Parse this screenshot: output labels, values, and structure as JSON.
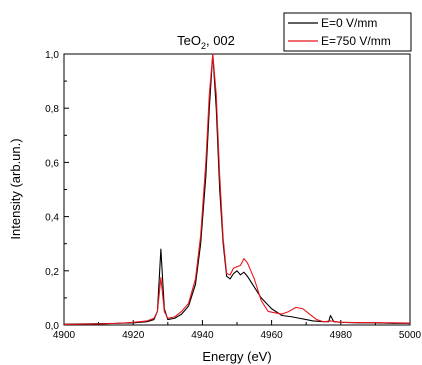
{
  "chart_data": {
    "type": "line",
    "title_main": "TeO",
    "title_sub": "2",
    "title_rest": ", 002",
    "xlabel": "Energy (eV)",
    "ylabel": "Intensity (arb.un.)",
    "xlim": [
      4900,
      5000
    ],
    "ylim": [
      0.0,
      1.0
    ],
    "xticks": [
      "4900",
      "4920",
      "4940",
      "4960",
      "4980",
      "5000"
    ],
    "yticks": [
      "0,0",
      "0,2",
      "0,4",
      "0,6",
      "0,8",
      "1,0"
    ],
    "legend_position": "top-right-outside",
    "series": [
      {
        "name": "E=0 V/mm",
        "color": "#000000",
        "points": [
          [
            4900,
            0.003
          ],
          [
            4905,
            0.004
          ],
          [
            4910,
            0.005
          ],
          [
            4915,
            0.006
          ],
          [
            4920,
            0.008
          ],
          [
            4924,
            0.012
          ],
          [
            4926,
            0.02
          ],
          [
            4927,
            0.05
          ],
          [
            4928,
            0.28
          ],
          [
            4929,
            0.06
          ],
          [
            4930,
            0.02
          ],
          [
            4932,
            0.025
          ],
          [
            4934,
            0.04
          ],
          [
            4936,
            0.07
          ],
          [
            4938,
            0.15
          ],
          [
            4939.5,
            0.3
          ],
          [
            4941,
            0.55
          ],
          [
            4942,
            0.8
          ],
          [
            4943,
            1.0
          ],
          [
            4944,
            0.8
          ],
          [
            4945,
            0.5
          ],
          [
            4946,
            0.3
          ],
          [
            4947,
            0.18
          ],
          [
            4948,
            0.17
          ],
          [
            4949,
            0.19
          ],
          [
            4950,
            0.2
          ],
          [
            4951,
            0.185
          ],
          [
            4952,
            0.195
          ],
          [
            4953,
            0.18
          ],
          [
            4955,
            0.14
          ],
          [
            4957,
            0.1
          ],
          [
            4960,
            0.06
          ],
          [
            4963,
            0.035
          ],
          [
            4966,
            0.03
          ],
          [
            4968,
            0.025
          ],
          [
            4970,
            0.02
          ],
          [
            4972,
            0.015
          ],
          [
            4975,
            0.012
          ],
          [
            4976.5,
            0.012
          ],
          [
            4977,
            0.035
          ],
          [
            4978,
            0.012
          ],
          [
            4980,
            0.01
          ],
          [
            4985,
            0.008
          ],
          [
            4990,
            0.008
          ],
          [
            4995,
            0.006
          ],
          [
            5000,
            0.006
          ]
        ]
      },
      {
        "name": "E=750 V/mm",
        "color": "#e8141b",
        "points": [
          [
            4900,
            0.002
          ],
          [
            4905,
            0.003
          ],
          [
            4910,
            0.004
          ],
          [
            4915,
            0.006
          ],
          [
            4920,
            0.01
          ],
          [
            4924,
            0.015
          ],
          [
            4926,
            0.025
          ],
          [
            4927,
            0.05
          ],
          [
            4928,
            0.175
          ],
          [
            4929,
            0.05
          ],
          [
            4930,
            0.025
          ],
          [
            4932,
            0.03
          ],
          [
            4934,
            0.05
          ],
          [
            4936,
            0.08
          ],
          [
            4938,
            0.17
          ],
          [
            4939.5,
            0.33
          ],
          [
            4941,
            0.6
          ],
          [
            4942,
            0.85
          ],
          [
            4943,
            1.0
          ],
          [
            4944,
            0.85
          ],
          [
            4945,
            0.55
          ],
          [
            4946,
            0.32
          ],
          [
            4947,
            0.19
          ],
          [
            4948,
            0.185
          ],
          [
            4949,
            0.21
          ],
          [
            4950,
            0.215
          ],
          [
            4951,
            0.22
          ],
          [
            4952,
            0.245
          ],
          [
            4953,
            0.23
          ],
          [
            4955,
            0.17
          ],
          [
            4957,
            0.09
          ],
          [
            4959,
            0.05
          ],
          [
            4961,
            0.045
          ],
          [
            4963,
            0.04
          ],
          [
            4965,
            0.05
          ],
          [
            4967,
            0.065
          ],
          [
            4969,
            0.06
          ],
          [
            4971,
            0.04
          ],
          [
            4973,
            0.02
          ],
          [
            4975,
            0.012
          ],
          [
            4977,
            0.015
          ],
          [
            4980,
            0.01
          ],
          [
            4985,
            0.009
          ],
          [
            4990,
            0.009
          ],
          [
            4995,
            0.008
          ],
          [
            5000,
            0.007
          ]
        ]
      }
    ]
  }
}
